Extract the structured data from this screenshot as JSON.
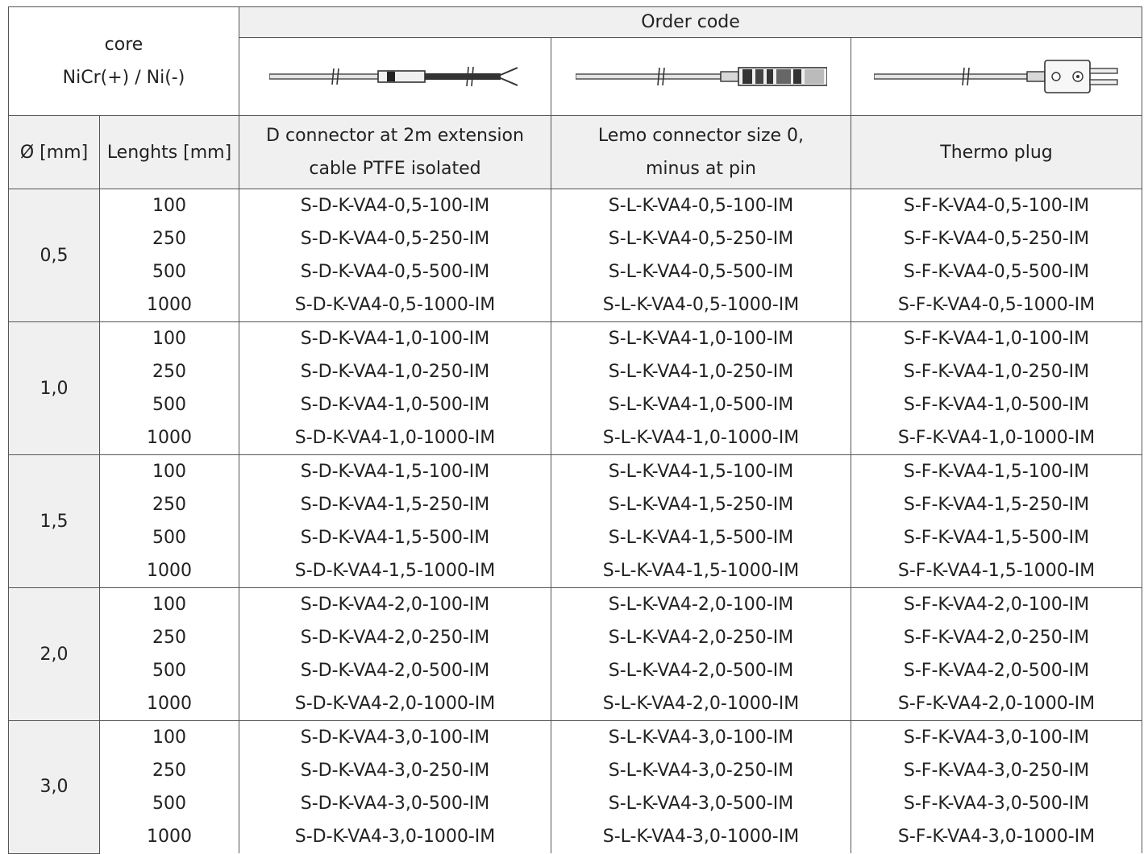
{
  "header": {
    "core_line1": "core",
    "core_line2": "NiCr(+) / Ni(-)",
    "order_code": "Order code",
    "col_diameter": "Ø [mm]",
    "col_length": "Lenghts [mm]",
    "col_d_line1": "D connector at 2m extension",
    "col_d_line2": "cable PTFE isolated",
    "col_l_line1": "Lemo connector size 0,",
    "col_l_line2": "minus at pin",
    "col_f": "Thermo plug"
  },
  "images": {
    "d": "probe-d-connector-icon",
    "l": "probe-lemo-connector-icon",
    "f": "probe-thermo-plug-icon"
  },
  "groups": [
    {
      "diameter": "0,5",
      "rows": [
        {
          "length": "100",
          "d": "S-D-K-VA4-0,5-100-IM",
          "l": "S-L-K-VA4-0,5-100-IM",
          "f": "S-F-K-VA4-0,5-100-IM"
        },
        {
          "length": "250",
          "d": "S-D-K-VA4-0,5-250-IM",
          "l": "S-L-K-VA4-0,5-250-IM",
          "f": "S-F-K-VA4-0,5-250-IM"
        },
        {
          "length": "500",
          "d": "S-D-K-VA4-0,5-500-IM",
          "l": "S-L-K-VA4-0,5-500-IM",
          "f": "S-F-K-VA4-0,5-500-IM"
        },
        {
          "length": "1000",
          "d": "S-D-K-VA4-0,5-1000-IM",
          "l": "S-L-K-VA4-0,5-1000-IM",
          "f": "S-F-K-VA4-0,5-1000-IM"
        }
      ]
    },
    {
      "diameter": "1,0",
      "rows": [
        {
          "length": "100",
          "d": "S-D-K-VA4-1,0-100-IM",
          "l": "S-L-K-VA4-1,0-100-IM",
          "f": "S-F-K-VA4-1,0-100-IM"
        },
        {
          "length": "250",
          "d": "S-D-K-VA4-1,0-250-IM",
          "l": "S-L-K-VA4-1,0-250-IM",
          "f": "S-F-K-VA4-1,0-250-IM"
        },
        {
          "length": "500",
          "d": "S-D-K-VA4-1,0-500-IM",
          "l": "S-L-K-VA4-1,0-500-IM",
          "f": "S-F-K-VA4-1,0-500-IM"
        },
        {
          "length": "1000",
          "d": "S-D-K-VA4-1,0-1000-IM",
          "l": "S-L-K-VA4-1,0-1000-IM",
          "f": "S-F-K-VA4-1,0-1000-IM"
        }
      ]
    },
    {
      "diameter": "1,5",
      "rows": [
        {
          "length": "100",
          "d": "S-D-K-VA4-1,5-100-IM",
          "l": "S-L-K-VA4-1,5-100-IM",
          "f": "S-F-K-VA4-1,5-100-IM"
        },
        {
          "length": "250",
          "d": "S-D-K-VA4-1,5-250-IM",
          "l": "S-L-K-VA4-1,5-250-IM",
          "f": "S-F-K-VA4-1,5-250-IM"
        },
        {
          "length": "500",
          "d": "S-D-K-VA4-1,5-500-IM",
          "l": "S-L-K-VA4-1,5-500-IM",
          "f": "S-F-K-VA4-1,5-500-IM"
        },
        {
          "length": "1000",
          "d": "S-D-K-VA4-1,5-1000-IM",
          "l": "S-L-K-VA4-1,5-1000-IM",
          "f": "S-F-K-VA4-1,5-1000-IM"
        }
      ]
    },
    {
      "diameter": "2,0",
      "rows": [
        {
          "length": "100",
          "d": "S-D-K-VA4-2,0-100-IM",
          "l": "S-L-K-VA4-2,0-100-IM",
          "f": "S-F-K-VA4-2,0-100-IM"
        },
        {
          "length": "250",
          "d": "S-D-K-VA4-2,0-250-IM",
          "l": "S-L-K-VA4-2,0-250-IM",
          "f": "S-F-K-VA4-2,0-250-IM"
        },
        {
          "length": "500",
          "d": "S-D-K-VA4-2,0-500-IM",
          "l": "S-L-K-VA4-2,0-500-IM",
          "f": "S-F-K-VA4-2,0-500-IM"
        },
        {
          "length": "1000",
          "d": "S-D-K-VA4-2,0-1000-IM",
          "l": "S-L-K-VA4-2,0-1000-IM",
          "f": "S-F-K-VA4-2,0-1000-IM"
        }
      ]
    },
    {
      "diameter": "3,0",
      "rows": [
        {
          "length": "100",
          "d": "S-D-K-VA4-3,0-100-IM",
          "l": "S-L-K-VA4-3,0-100-IM",
          "f": "S-F-K-VA4-3,0-100-IM"
        },
        {
          "length": "250",
          "d": "S-D-K-VA4-3,0-250-IM",
          "l": "S-L-K-VA4-3,0-250-IM",
          "f": "S-F-K-VA4-3,0-250-IM"
        },
        {
          "length": "500",
          "d": "S-D-K-VA4-3,0-500-IM",
          "l": "S-L-K-VA4-3,0-500-IM",
          "f": "S-F-K-VA4-3,0-500-IM"
        },
        {
          "length": "1000",
          "d": "S-D-K-VA4-3,0-1000-IM",
          "l": "S-L-K-VA4-3,0-1000-IM",
          "f": "S-F-K-VA4-3,0-1000-IM"
        }
      ]
    }
  ]
}
